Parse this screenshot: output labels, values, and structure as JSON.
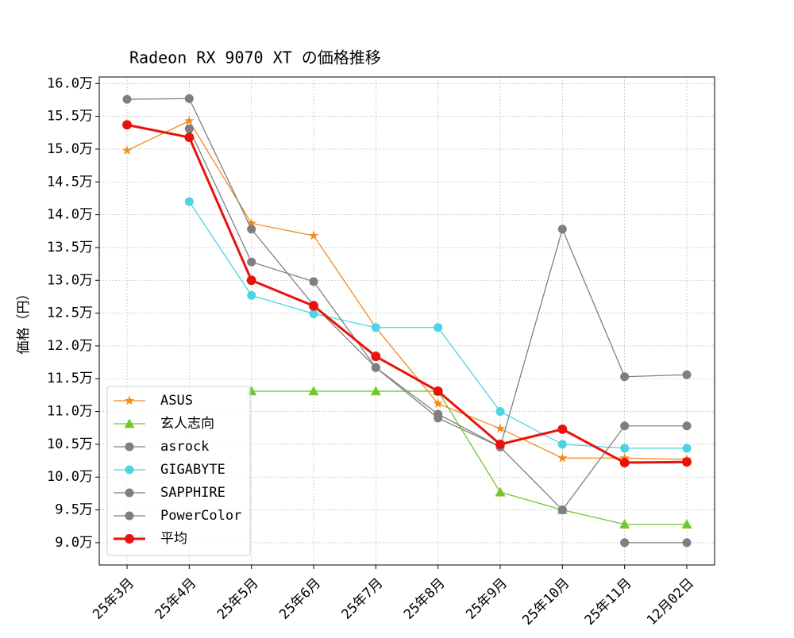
{
  "chart_data": {
    "type": "line",
    "title": "Radeon RX 9070 XT の価格推移",
    "y_label": "価格（円）",
    "categories": [
      "25年3月",
      "25年4月",
      "25年5月",
      "25年6月",
      "25年7月",
      "25年8月",
      "25年9月",
      "25年10月",
      "25年11月",
      "12月02日"
    ],
    "series": [
      {
        "name": "ASUS",
        "color": "#f28a1e",
        "marker": "star",
        "linewidth": 1.3,
        "values": [
          149800,
          154300,
          138700,
          136800,
          122800,
          111200,
          107400,
          102900,
          102900,
          102700
        ]
      },
      {
        "name": "玄人志向",
        "color": "#72c72a",
        "marker": "triangle",
        "linewidth": 1.3,
        "values": [
          null,
          null,
          113100,
          113100,
          113100,
          113100,
          97700,
          95000,
          92800,
          92800
        ]
      },
      {
        "name": "asrock",
        "color": "#7f7f7f",
        "marker": "circle",
        "linewidth": 1.3,
        "values": [
          157600,
          157700,
          137800,
          126200,
          116700,
          109600,
          104600,
          137800,
          115300,
          115600
        ]
      },
      {
        "name": "GIGABYTE",
        "color": "#4dd4e4",
        "marker": "circle",
        "linewidth": 1.3,
        "values": [
          null,
          142000,
          127700,
          124900,
          122800,
          122800,
          110000,
          105000,
          104400,
          104400
        ]
      },
      {
        "name": "SAPPHIRE",
        "color": "#7f7f7f",
        "marker": "circle",
        "linewidth": 1.3,
        "values": [
          null,
          153100,
          132800,
          129800,
          116700,
          109000,
          104600,
          95000,
          107800,
          107800
        ]
      },
      {
        "name": "PowerColor",
        "color": "#7f7f7f",
        "marker": "circle",
        "linewidth": 1.3,
        "values": [
          null,
          null,
          null,
          null,
          null,
          null,
          null,
          null,
          90000,
          90000
        ]
      },
      {
        "name": "平均",
        "color": "#e8120c",
        "marker": "circle",
        "linewidth": 3,
        "values": [
          153700,
          151800,
          130000,
          126100,
          118400,
          113100,
          105000,
          107300,
          102200,
          102300
        ]
      }
    ],
    "ylim": [
      86600,
      161000
    ],
    "yticks": [
      {
        "value": 90000,
        "label": "9.0万"
      },
      {
        "value": 95000,
        "label": "9.5万"
      },
      {
        "value": 100000,
        "label": "10.0万"
      },
      {
        "value": 105000,
        "label": "10.5万"
      },
      {
        "value": 110000,
        "label": "11.0万"
      },
      {
        "value": 115000,
        "label": "11.5万"
      },
      {
        "value": 120000,
        "label": "12.0万"
      },
      {
        "value": 125000,
        "label": "12.5万"
      },
      {
        "value": 130000,
        "label": "13.0万"
      },
      {
        "value": 135000,
        "label": "13.5万"
      },
      {
        "value": 140000,
        "label": "14.0万"
      },
      {
        "value": 145000,
        "label": "14.5万"
      },
      {
        "value": 150000,
        "label": "15.0万"
      },
      {
        "value": 155000,
        "label": "15.5万"
      },
      {
        "value": 160000,
        "label": "16.0万"
      }
    ],
    "grid": true,
    "legend": "lower left"
  }
}
